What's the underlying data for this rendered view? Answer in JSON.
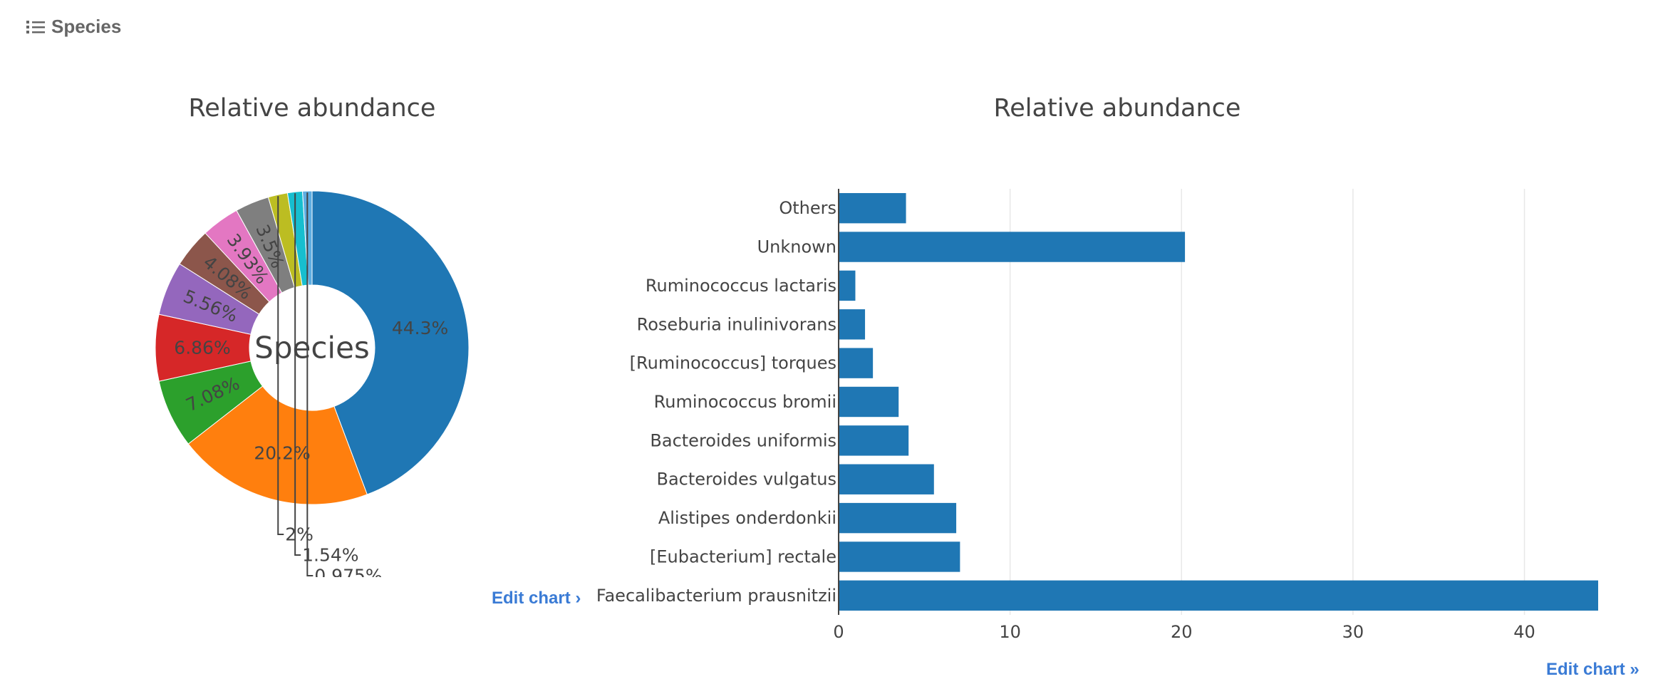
{
  "header": {
    "title": "Species",
    "icon": "list-icon"
  },
  "pie_chart": {
    "title": "Relative abundance",
    "center_label": "Species",
    "edit_label": "Edit chart ›"
  },
  "bar_chart": {
    "title": "Relative abundance",
    "edit_label": "Edit chart »"
  },
  "chart_data": [
    {
      "type": "pie",
      "hole": true,
      "title": "Relative abundance",
      "center_text": "Species",
      "slices": [
        {
          "label": "Faecalibacterium prausnitzii",
          "value": 44.3,
          "text": "44.3%",
          "color": "#1f77b4"
        },
        {
          "label": "Unknown",
          "value": 20.2,
          "text": "20.2%",
          "color": "#ff7f0e"
        },
        {
          "label": "[Eubacterium] rectale",
          "value": 7.08,
          "text": "7.08%",
          "color": "#2ca02c"
        },
        {
          "label": "Alistipes onderdonkii",
          "value": 6.86,
          "text": "6.86%",
          "color": "#d62728"
        },
        {
          "label": "Bacteroides vulgatus",
          "value": 5.56,
          "text": "5.56%",
          "color": "#9467bd"
        },
        {
          "label": "Bacteroides uniformis",
          "value": 4.08,
          "text": "4.08%",
          "color": "#8c564b"
        },
        {
          "label": "Others",
          "value": 3.93,
          "text": "3.93%",
          "color": "#e377c2"
        },
        {
          "label": "Ruminococcus bromii",
          "value": 3.5,
          "text": "3.5%",
          "color": "#7f7f7f"
        },
        {
          "label": "[Ruminococcus] torques",
          "value": 2.0,
          "text": "2%",
          "color": "#bcbd22"
        },
        {
          "label": "Roseburia inulinivorans",
          "value": 1.54,
          "text": "1.54%",
          "color": "#17becf"
        },
        {
          "label": "Ruminococcus lactaris",
          "value": 0.975,
          "text": "0.975%",
          "color": "#5dade2"
        }
      ]
    },
    {
      "type": "bar",
      "orientation": "horizontal",
      "title": "Relative abundance",
      "color": "#1f77b4",
      "categories": [
        "Others",
        "Unknown",
        "Ruminococcus lactaris",
        "Roseburia inulinivorans",
        "[Ruminococcus] torques",
        "Ruminococcus bromii",
        "Bacteroides uniformis",
        "Bacteroides vulgatus",
        "Alistipes onderdonkii",
        "[Eubacterium] rectale",
        "Faecalibacterium prausnitzii"
      ],
      "values": [
        3.93,
        20.2,
        0.975,
        1.54,
        2.0,
        3.5,
        4.08,
        5.56,
        6.86,
        7.08,
        44.3
      ],
      "xlim": [
        0,
        44.3
      ],
      "xticks": [
        0,
        10,
        20,
        30,
        40
      ],
      "grid": true
    }
  ]
}
